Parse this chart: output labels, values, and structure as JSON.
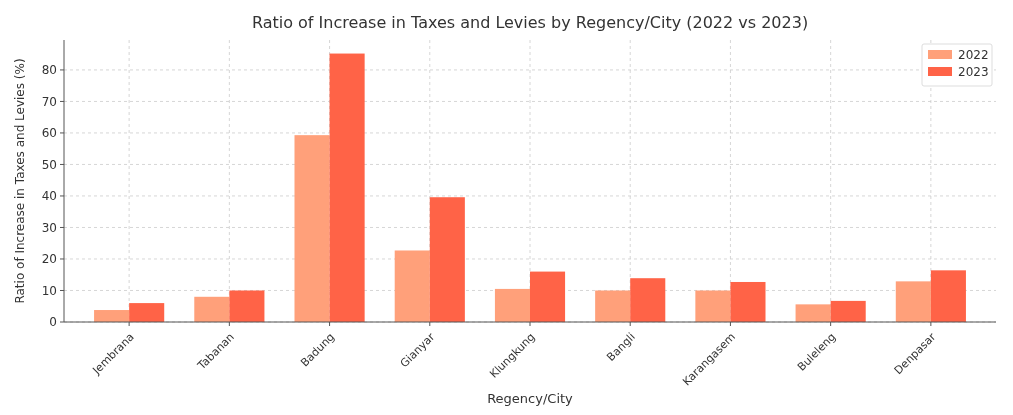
{
  "chart_data": {
    "type": "bar",
    "title": "Ratio of Increase in Taxes and Levies by Regency/City (2022 vs 2023)",
    "xlabel": "Regency/City",
    "ylabel": "Ratio of Increase in Taxes and Levies (%)",
    "categories": [
      "Jembrana",
      "Tabanan",
      "Badung",
      "Gianyar",
      "Klungkung",
      "Bangli",
      "Karangasem",
      "Buleleng",
      "Denpasar"
    ],
    "series": [
      {
        "name": "2022",
        "color": "#ffa07a",
        "values": [
          3.8,
          8,
          59.3,
          22.7,
          10.5,
          10,
          10,
          5.6,
          12.9
        ]
      },
      {
        "name": "2023",
        "color": "#ff6347",
        "values": [
          6,
          10,
          85.2,
          39.6,
          16,
          13.9,
          12.7,
          6.7,
          16.4
        ]
      }
    ],
    "ylim": [
      0,
      89.5
    ],
    "yticks": [
      0,
      10,
      20,
      30,
      40,
      50,
      60,
      70,
      80
    ],
    "grid": true,
    "legend": "top right"
  }
}
